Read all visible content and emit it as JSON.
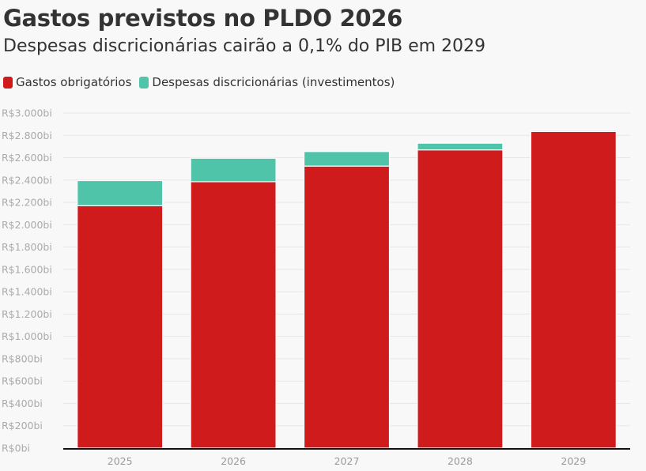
{
  "title": "Gastos previstos no PLDO 2026",
  "subtitle": "Despesas discricionárias cairão a 0,1% do PIB em 2029",
  "chart_data": {
    "type": "bar",
    "stacked": true,
    "title": "Gastos previstos no PLDO 2026",
    "subtitle": "Despesas discricionárias cairão a 0,1% do PIB em 2029",
    "categories": [
      "2025",
      "2026",
      "2027",
      "2028",
      "2029"
    ],
    "series": [
      {
        "name": "Gastos obrigatórios",
        "color": "#cf1b1b",
        "values": [
          2170,
          2385,
          2525,
          2670,
          2835
        ]
      },
      {
        "name": "Despesas discricionárias (investimentos)",
        "color": "#4fc4a8",
        "values": [
          225,
          210,
          130,
          60,
          10
        ]
      }
    ],
    "ylim": [
      0,
      3000
    ],
    "yticks": [
      0,
      200,
      400,
      600,
      800,
      1000,
      1200,
      1400,
      1600,
      1800,
      2000,
      2200,
      2400,
      2600,
      2800,
      3000
    ],
    "ytick_labels": [
      "R$0bi",
      "R$200bi",
      "R$400bi",
      "R$600bi",
      "R$800bi",
      "R$1.000bi",
      "R$1.200bi",
      "R$1.400bi",
      "R$1.600bi",
      "R$1.800bi",
      "R$2.000bi",
      "R$2.200bi",
      "R$2.400bi",
      "R$2.600bi",
      "R$2.800bi",
      "R$3.000bi"
    ],
    "grid": true,
    "legend_position": "top-left"
  }
}
